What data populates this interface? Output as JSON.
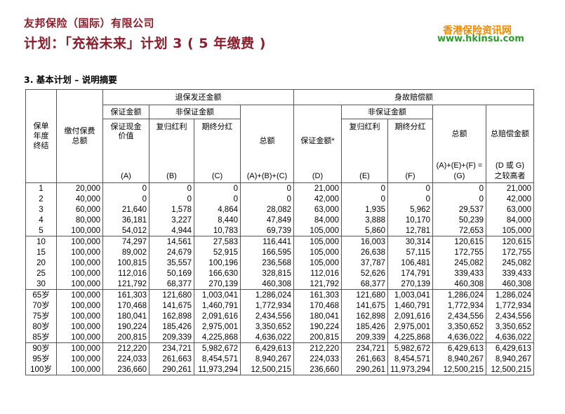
{
  "header": {
    "company": "友邦保险（国际）有限公司",
    "plan_title": "计划：「充裕未来」计划 3 ( 5 年缴费 )",
    "watermark_cn": "香港保险资讯网",
    "watermark_url": "www.hkinsu.com"
  },
  "section_title": "3.  基本计划 – 说明摘要",
  "table": {
    "headers": {
      "policy_year_end": [
        "保单",
        "年度",
        "终结"
      ],
      "premiums_paid": [
        "缴付保费",
        "总额"
      ],
      "surrender_group": "退保发还金额",
      "death_group": "身故赔偿额",
      "guaranteed": "保证金额",
      "non_guaranteed": "非保证金额",
      "guaranteed_cash_value": [
        "保证现金",
        "价值"
      ],
      "reversionary_bonus": "复归红利",
      "terminal_bonus": "期终分红",
      "total": "总额",
      "death_guaranteed": "保证金额*",
      "total_death_benefit": "总赔偿金额",
      "col_A": "(A)",
      "col_B": "(B)",
      "col_C": "(C)",
      "col_ABC": "(A)+(B)+(C)",
      "col_D": "(D)",
      "col_E": "(E)",
      "col_F": "(F)",
      "col_AEF": "(A)+(E)+(F) =",
      "col_G": "(G)",
      "col_DG": [
        "(D 或 G)",
        "之较高者"
      ]
    },
    "groups": [
      [
        [
          "1",
          "20,000",
          "0",
          "0",
          "0",
          "0",
          "21,000",
          "0",
          "0",
          "0",
          "21,000"
        ],
        [
          "2",
          "40,000",
          "0",
          "0",
          "0",
          "0",
          "42,000",
          "0",
          "0",
          "0",
          "42,000"
        ],
        [
          "3",
          "60,000",
          "21,640",
          "1,578",
          "4,864",
          "28,082",
          "63,000",
          "1,935",
          "5,962",
          "29,537",
          "63,000"
        ],
        [
          "4",
          "80,000",
          "36,181",
          "3,227",
          "8,440",
          "47,849",
          "84,000",
          "3,888",
          "10,170",
          "50,239",
          "84,000"
        ],
        [
          "5",
          "100,000",
          "54,012",
          "4,944",
          "10,783",
          "69,739",
          "105,000",
          "5,860",
          "12,781",
          "72,653",
          "105,000"
        ]
      ],
      [
        [
          "10",
          "100,000",
          "74,297",
          "14,561",
          "27,583",
          "116,441",
          "105,000",
          "16,003",
          "30,314",
          "120,615",
          "120,615"
        ],
        [
          "15",
          "100,000",
          "89,002",
          "24,679",
          "52,915",
          "166,595",
          "105,000",
          "26,638",
          "57,115",
          "172,755",
          "172,755"
        ],
        [
          "20",
          "100,000",
          "100,815",
          "35,557",
          "100,196",
          "236,568",
          "105,000",
          "37,787",
          "106,481",
          "245,082",
          "245,082"
        ],
        [
          "25",
          "100,000",
          "112,016",
          "50,169",
          "166,630",
          "328,815",
          "112,016",
          "52,626",
          "174,791",
          "339,433",
          "339,433"
        ],
        [
          "30",
          "100,000",
          "121,792",
          "68,377",
          "270,139",
          "460,308",
          "121,792",
          "68,377",
          "270,139",
          "460,308",
          "460,308"
        ]
      ],
      [
        [
          "65岁",
          "100,000",
          "161,303",
          "121,680",
          "1,003,041",
          "1,286,024",
          "161,303",
          "121,680",
          "1,003,041",
          "1,286,024",
          "1,286,024"
        ],
        [
          "70岁",
          "100,000",
          "170,468",
          "141,675",
          "1,460,791",
          "1,772,934",
          "170,468",
          "141,675",
          "1,460,791",
          "1,772,934",
          "1,772,934"
        ],
        [
          "75岁",
          "100,000",
          "180,041",
          "162,898",
          "2,091,616",
          "2,434,556",
          "180,041",
          "162,898",
          "2,091,616",
          "2,434,556",
          "2,434,556"
        ],
        [
          "80岁",
          "100,000",
          "190,224",
          "185,426",
          "2,975,001",
          "3,350,652",
          "190,224",
          "185,426",
          "2,975,001",
          "3,350,652",
          "3,350,652"
        ],
        [
          "85岁",
          "100,000",
          "200,815",
          "209,339",
          "4,225,868",
          "4,636,022",
          "200,815",
          "209,339",
          "4,225,868",
          "4,636,022",
          "4,636,022"
        ]
      ],
      [
        [
          "90岁",
          "100,000",
          "212,220",
          "234,721",
          "5,982,672",
          "6,429,613",
          "212,220",
          "234,721",
          "5,982,672",
          "6,429,613",
          "6,429,613"
        ],
        [
          "95岁",
          "100,000",
          "224,033",
          "261,663",
          "8,454,571",
          "8,940,267",
          "224,033",
          "261,663",
          "8,454,571",
          "8,940,267",
          "8,940,267"
        ],
        [
          "100岁",
          "100,000",
          "236,660",
          "290,261",
          "11,973,294",
          "12,500,215",
          "236,660",
          "290,261",
          "11,973,294",
          "12,500,215",
          "12,500,215"
        ]
      ]
    ]
  }
}
